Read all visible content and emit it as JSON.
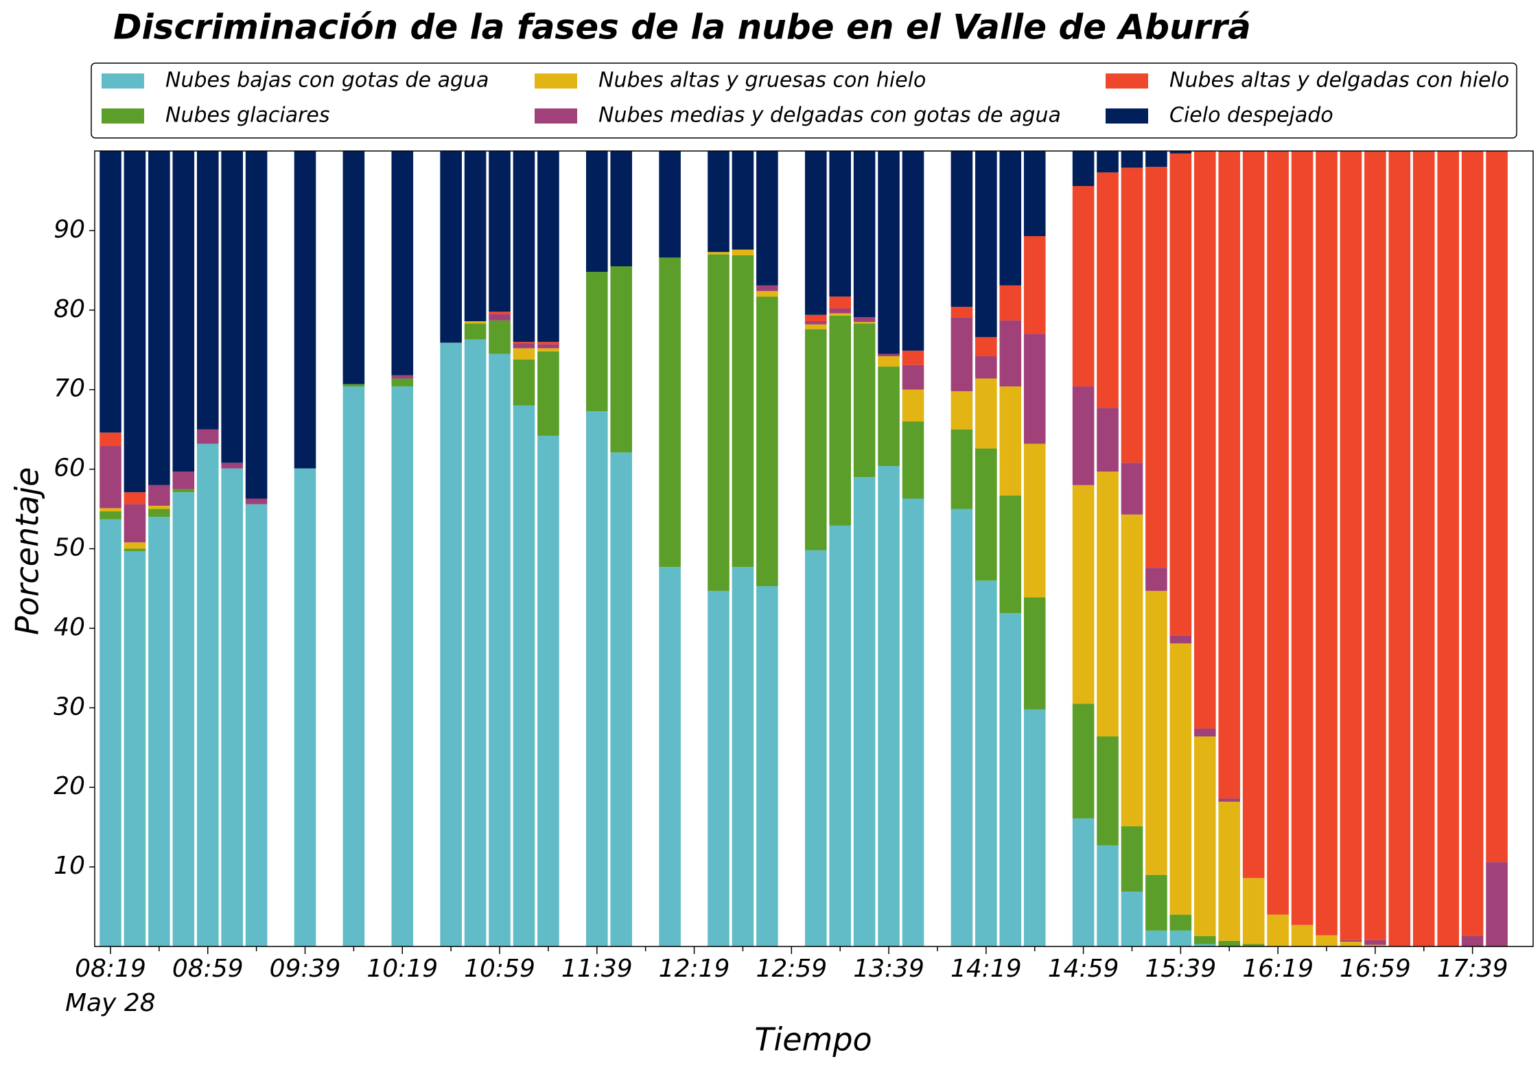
{
  "chart_data": {
    "type": "stacked_bar",
    "title": "Discriminación de la fases de la nube en el Valle de Aburrá",
    "xlabel": "Tiempo",
    "ylabel": "Porcentaje",
    "x_date_label": "May 28",
    "categories": [
      "08:19",
      null,
      null,
      null,
      "08:59",
      null,
      null,
      null,
      "09:39",
      null,
      null,
      null,
      "10:19",
      null,
      null,
      null,
      "10:59",
      null,
      null,
      null,
      "11:39",
      null,
      null,
      null,
      "12:19",
      null,
      null,
      null,
      "12:59",
      null,
      null,
      null,
      "13:39",
      null,
      null,
      null,
      "14:19",
      null,
      null,
      null,
      "14:59",
      null,
      null,
      null,
      "15:39",
      null,
      null,
      null,
      "16:19",
      null,
      null,
      null,
      "16:59",
      null,
      null,
      null,
      "17:39",
      null
    ],
    "ylim": [
      0,
      100
    ],
    "yticks": [
      10,
      20,
      30,
      40,
      50,
      60,
      70,
      80,
      90
    ],
    "grid": false,
    "legend": "top",
    "series": [
      {
        "name": "Nubes bajas con gotas de agua",
        "color": "#62bcc8",
        "values": [
          53.7,
          49.7,
          54.0,
          57.1,
          63.2,
          60.1,
          55.6,
          null,
          60.1,
          null,
          70.4,
          null,
          70.4,
          null,
          75.9,
          76.3,
          74.5,
          68.0,
          64.2,
          null,
          67.3,
          62.1,
          null,
          47.7,
          null,
          44.7,
          47.7,
          45.3,
          null,
          49.8,
          52.9,
          59.0,
          60.4,
          56.3,
          null,
          55.0,
          46.0,
          41.9,
          29.8,
          null,
          16.1,
          12.7,
          6.9,
          2.0,
          2.0,
          0.3,
          0,
          0,
          0,
          0,
          0,
          0,
          0,
          0,
          0,
          0,
          0,
          0
        ]
      },
      {
        "name": "Nubes glaciares",
        "color": "#5b9e2a",
        "values": [
          1.0,
          0.3,
          1.0,
          0.4,
          0,
          0,
          0,
          null,
          0,
          null,
          0.3,
          null,
          1.0,
          null,
          0,
          2.0,
          4.2,
          5.8,
          10.6,
          null,
          17.5,
          23.4,
          null,
          38.9,
          null,
          42.3,
          39.2,
          36.4,
          null,
          27.8,
          26.4,
          19.3,
          12.5,
          9.7,
          null,
          10.0,
          16.6,
          14.8,
          14.1,
          null,
          14.4,
          13.7,
          8.2,
          7.0,
          2.0,
          1.0,
          0.7,
          0.3,
          0,
          0,
          0,
          0,
          0,
          0,
          0,
          0,
          0,
          0
        ]
      },
      {
        "name": "Nubes altas y gruesas con hielo",
        "color": "#e3b514",
        "values": [
          0.4,
          0.8,
          0.4,
          0,
          0,
          0,
          0,
          null,
          0,
          null,
          0,
          null,
          0,
          null,
          0,
          0.3,
          0,
          1.4,
          0.4,
          null,
          0,
          0,
          null,
          0,
          null,
          0.3,
          0.7,
          0.7,
          null,
          0.6,
          0.3,
          0.2,
          1.3,
          4.0,
          null,
          4.8,
          8.8,
          13.7,
          19.3,
          null,
          27.5,
          33.3,
          39.2,
          35.7,
          34.1,
          25.1,
          17.5,
          8.3,
          4.0,
          2.7,
          1.4,
          0.6,
          0.2,
          0,
          0,
          0,
          0,
          0
        ]
      },
      {
        "name": "Nubes medias y delgadas con gotas de agua",
        "color": "#a0417a",
        "values": [
          7.8,
          4.8,
          2.6,
          2.2,
          1.8,
          0.7,
          0.7,
          null,
          0,
          null,
          0,
          null,
          0.4,
          null,
          0,
          0,
          0.8,
          0.6,
          0.5,
          null,
          0,
          0,
          null,
          0,
          null,
          0,
          0,
          0.7,
          null,
          0.4,
          0.6,
          0.6,
          0.3,
          3.1,
          null,
          9.3,
          2.8,
          8.3,
          13.8,
          null,
          12.4,
          8.0,
          6.5,
          2.9,
          1.0,
          1.0,
          0.4,
          0,
          0,
          0,
          0,
          0.2,
          0.6,
          0,
          0,
          0,
          1.3,
          10.6
        ]
      },
      {
        "name": "Nubes altas y delgadas con hielo",
        "color": "#ee472b",
        "values": [
          1.7,
          1.5,
          0,
          0,
          0,
          0,
          0,
          null,
          0,
          null,
          0,
          null,
          0,
          null,
          0,
          0,
          0.3,
          0.2,
          0.3,
          null,
          0,
          0,
          null,
          0,
          null,
          0,
          0,
          0,
          null,
          0.8,
          1.5,
          0,
          0,
          1.8,
          null,
          1.3,
          2.4,
          4.4,
          12.3,
          null,
          25.2,
          29.6,
          37.1,
          50.4,
          60.6,
          72.6,
          81.4,
          91.4,
          96.0,
          97.3,
          98.6,
          99.2,
          99.2,
          100,
          100,
          100,
          98.7,
          89.4
        ]
      },
      {
        "name": "Cielo despejado",
        "color": "#011f5b",
        "values": [
          35.4,
          42.9,
          42.0,
          40.3,
          35.0,
          39.2,
          43.7,
          null,
          39.9,
          null,
          29.3,
          null,
          28.2,
          null,
          24.1,
          21.4,
          20.2,
          24.0,
          24.0,
          null,
          15.2,
          14.5,
          null,
          13.4,
          null,
          12.7,
          12.4,
          16.9,
          null,
          20.6,
          18.3,
          20.9,
          25.5,
          25.1,
          null,
          19.6,
          23.4,
          16.9,
          10.7,
          null,
          4.4,
          2.7,
          2.1,
          2.0,
          0.3,
          0,
          0,
          0,
          0,
          0,
          0,
          0,
          0,
          0,
          0,
          0,
          0,
          0
        ]
      }
    ]
  }
}
